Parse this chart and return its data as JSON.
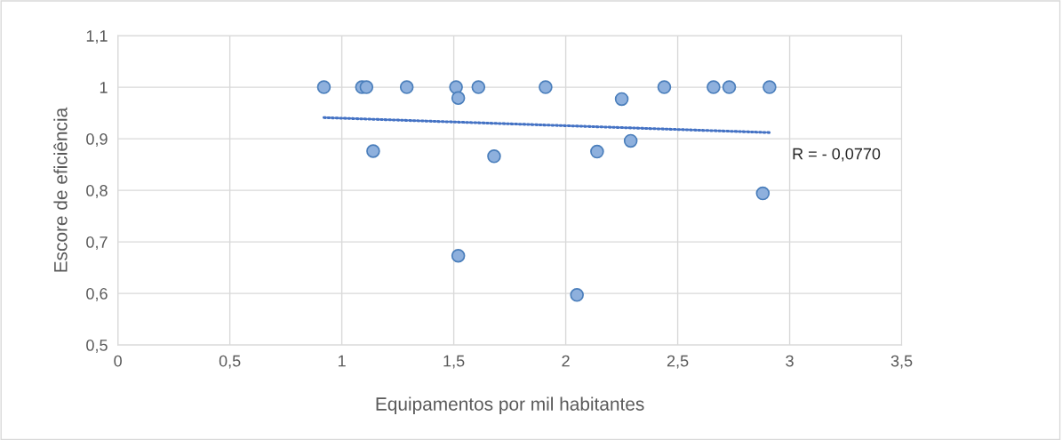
{
  "chart_data": {
    "type": "scatter",
    "xlabel": "Equipamentos por mil habitantes",
    "ylabel": "Escore de eficiência",
    "series": [
      {
        "color": "#8eb0dd",
        "marker": "circle",
        "x": [
          0.92,
          1.09,
          1.11,
          1.14,
          1.29,
          1.51,
          1.52,
          1.52,
          1.61,
          1.68,
          1.91,
          2.05,
          2.14,
          2.25,
          2.29,
          2.44,
          2.66,
          2.73,
          2.88,
          2.91
        ],
        "values": [
          1.0,
          1.0,
          1.0,
          0.876,
          1.0,
          1.0,
          0.979,
          0.673,
          1.0,
          0.866,
          1.0,
          0.597,
          0.875,
          0.977,
          0.896,
          1.0,
          1.0,
          1.0,
          0.794,
          1.0
        ]
      },
      {
        "type": "line",
        "color": "#4472c4",
        "line_style": "dotted",
        "marker": "none",
        "x": [
          0.92,
          2.91
        ],
        "values": [
          0.941,
          0.912
        ]
      }
    ],
    "annotations": [
      "R = - 0,0770"
    ],
    "xlim": [
      0,
      3.5
    ],
    "ylim": [
      0.5,
      1.1
    ],
    "xticks": [
      0,
      {
        "value": 0.5,
        "label": "0,5"
      },
      1,
      {
        "value": 1.5,
        "label": "1,5"
      },
      2,
      {
        "value": 2.5,
        "label": "2,5"
      },
      3,
      {
        "value": 3.5,
        "label": "3,5"
      }
    ],
    "yticks": [
      {
        "value": 0.5,
        "label": "0,5"
      },
      {
        "value": 0.6,
        "label": "0,6"
      },
      {
        "value": 0.7,
        "label": "0,7"
      },
      {
        "value": 0.8,
        "label": "0,8"
      },
      {
        "value": 0.9,
        "label": "0,9"
      },
      1,
      {
        "value": 1.1,
        "label": "1,1"
      }
    ],
    "grid": true,
    "legend": false
  }
}
